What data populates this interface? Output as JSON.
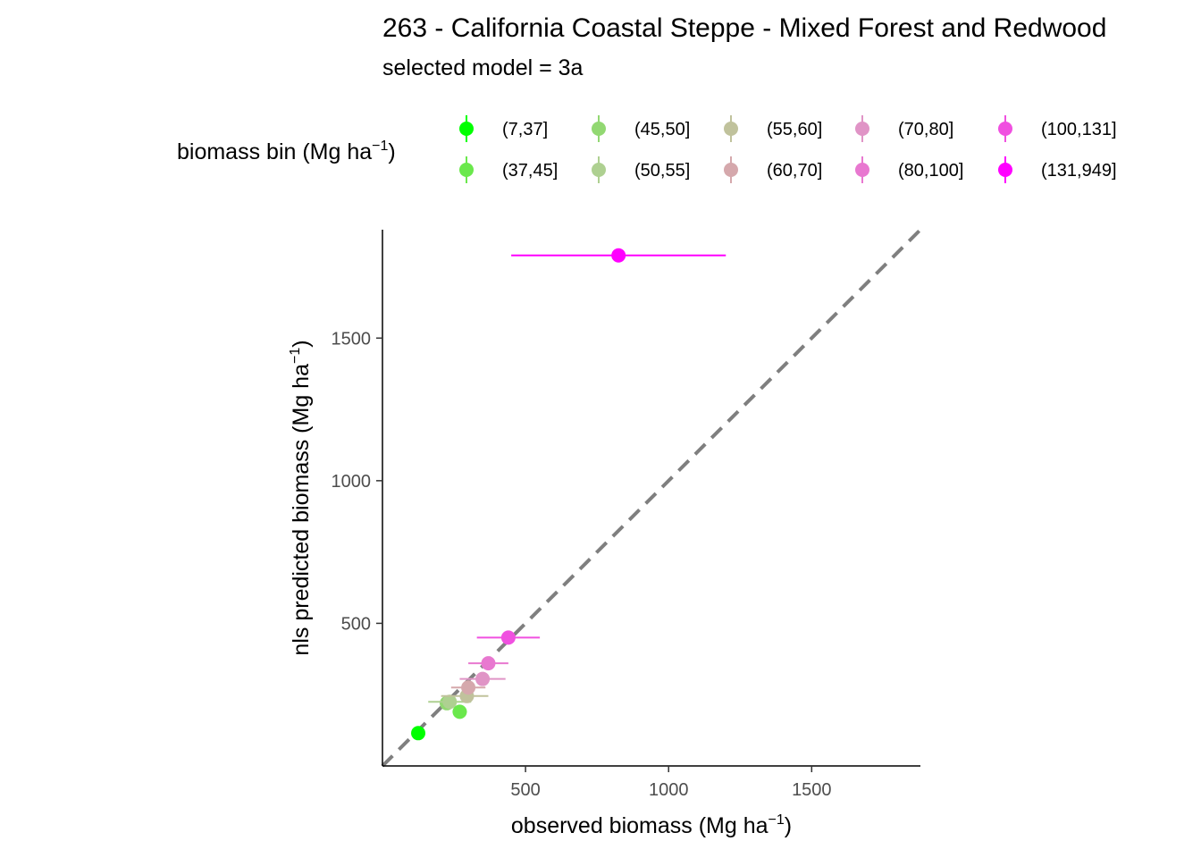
{
  "chart_data": {
    "type": "scatter",
    "title": "263 - California Coastal Steppe - Mixed Forest and Redwood",
    "subtitle": "selected model = 3a",
    "xlabel": "observed biomass (Mg ha",
    "xlabel_sup": "−1",
    "xlabel_close": ")",
    "ylabel": "nls predicted biomass (Mg ha",
    "ylabel_sup": "−1",
    "ylabel_close": ")",
    "xlim": [
      0,
      1880
    ],
    "ylim": [
      0,
      1880
    ],
    "x_ticks": [
      "500",
      "1000",
      "1500"
    ],
    "y_ticks": [
      "500",
      "1000",
      "1500"
    ],
    "x_tick_values": [
      500,
      1000,
      1500
    ],
    "y_tick_values": [
      500,
      1000,
      1500
    ],
    "reference_line": "y = x",
    "reference_line_color": "#7f7f7f",
    "legend": {
      "title": "biomass bin (Mg ha",
      "title_sup": "−1",
      "title_close": ")",
      "position": "top"
    },
    "series": [
      {
        "name": "(7,37]",
        "color": "#00ff00",
        "x": 125,
        "y": 115,
        "x_err": [
          110,
          140
        ],
        "y_err": [
          112,
          118
        ]
      },
      {
        "name": "(37,45]",
        "color": "#6ae84c",
        "x": 270,
        "y": 190,
        "x_err": [
          245,
          295
        ],
        "y_err": [
          185,
          195
        ]
      },
      {
        "name": "(45,50]",
        "color": "#92d872",
        "x": 225,
        "y": 220,
        "x_err": [
          200,
          250
        ],
        "y_err": [
          215,
          225
        ]
      },
      {
        "name": "(50,55]",
        "color": "#aed091",
        "x": 235,
        "y": 225,
        "x_err": [
          160,
          310
        ],
        "y_err": [
          220,
          230
        ]
      },
      {
        "name": "(55,60]",
        "color": "#c0c29c",
        "x": 295,
        "y": 245,
        "x_err": [
          205,
          370
        ],
        "y_err": [
          240,
          250
        ]
      },
      {
        "name": "(60,70]",
        "color": "#d5a8ac",
        "x": 300,
        "y": 275,
        "x_err": [
          240,
          360
        ],
        "y_err": [
          270,
          280
        ]
      },
      {
        "name": "(70,80]",
        "color": "#e094c6",
        "x": 350,
        "y": 305,
        "x_err": [
          270,
          430
        ],
        "y_err": [
          300,
          310
        ]
      },
      {
        "name": "(80,100]",
        "color": "#e878d0",
        "x": 370,
        "y": 360,
        "x_err": [
          300,
          440
        ],
        "y_err": [
          355,
          365
        ]
      },
      {
        "name": "(100,131]",
        "color": "#f050e0",
        "x": 440,
        "y": 450,
        "x_err": [
          330,
          550
        ],
        "y_err": [
          445,
          455
        ]
      },
      {
        "name": "(131,949]",
        "color": "#ff00ff",
        "x": 825,
        "y": 1790,
        "x_err": [
          450,
          1200
        ],
        "y_err": [
          1785,
          1795
        ]
      }
    ]
  }
}
